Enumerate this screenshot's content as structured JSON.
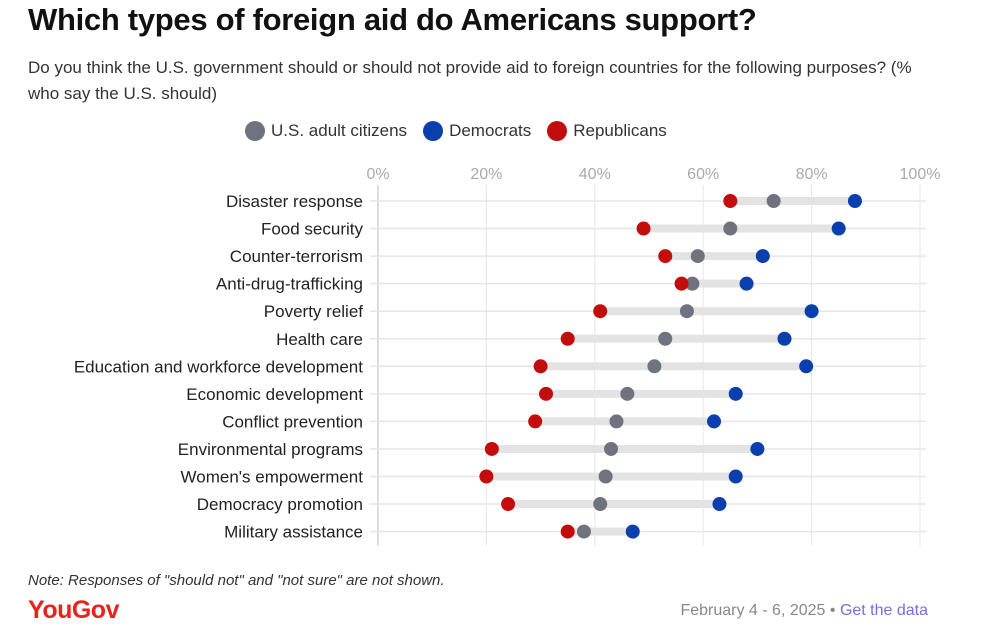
{
  "title": "Which types of foreign aid do Americans support?",
  "subtitle": "Do you think the U.S. government should or should not provide aid to foreign countries for the following purposes? (% who say the U.S. should)",
  "note": "Note: Responses of \"should not\" and \"not sure\" are not shown.",
  "logo": "YouGov",
  "footer": {
    "date": "February 4 - 6, 2025",
    "separator": "•",
    "link": "Get the data"
  },
  "colors": {
    "all": "#6e737d",
    "dem": "#0b3fae",
    "rep": "#c30d0d",
    "bar": "#e3e3e3",
    "grid": "#e6e6e6"
  },
  "chart_data": {
    "type": "dot",
    "title": "Which types of foreign aid do Americans support?",
    "xlim": [
      0,
      100
    ],
    "xticks": [
      "0%",
      "20%",
      "40%",
      "60%",
      "80%",
      "100%"
    ],
    "xtick_values": [
      0,
      20,
      40,
      60,
      80,
      100
    ],
    "legend_position": "top",
    "categories": [
      "Disaster response",
      "Food security",
      "Counter-terrorism",
      "Anti-drug-trafficking",
      "Poverty relief",
      "Health care",
      "Education and workforce development",
      "Economic development",
      "Conflict prevention",
      "Environmental programs",
      "Women's empowerment",
      "Democracy promotion",
      "Military assistance"
    ],
    "series": [
      {
        "name": "U.S. adult citizens",
        "key": "all",
        "values": [
          73,
          65,
          59,
          58,
          57,
          53,
          51,
          46,
          44,
          43,
          42,
          41,
          38
        ]
      },
      {
        "name": "Democrats",
        "key": "dem",
        "values": [
          88,
          85,
          71,
          68,
          80,
          75,
          79,
          66,
          62,
          70,
          66,
          63,
          47
        ]
      },
      {
        "name": "Republicans",
        "key": "rep",
        "values": [
          65,
          49,
          53,
          56,
          41,
          35,
          30,
          31,
          29,
          21,
          20,
          24,
          35
        ]
      }
    ]
  }
}
